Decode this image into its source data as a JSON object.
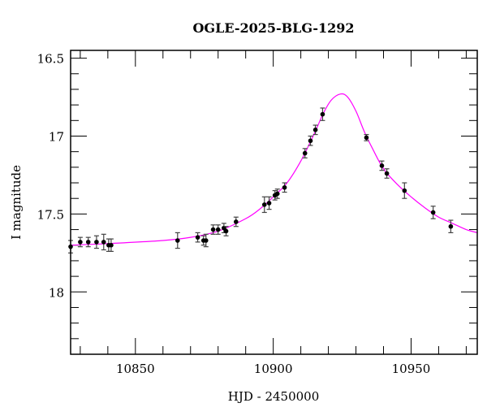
{
  "chart_data": {
    "type": "scatter",
    "title": "OGLE-2025-BLG-1292",
    "xlabel": "HJD - 2450000",
    "ylabel": "I magnitude",
    "xlim": [
      10826.5,
      10974
    ],
    "ylim": [
      16.45,
      18.4
    ],
    "y_inverted": true,
    "x_ticks": [
      10850,
      10900,
      10950
    ],
    "x_tick_labels": [
      "10850",
      "10900",
      "10950"
    ],
    "x_minor_step": 10,
    "y_ticks": [
      16.5,
      17,
      17.5,
      18
    ],
    "y_tick_labels": [
      "16.5",
      "17",
      "17.5",
      "18"
    ],
    "y_minor_step": 0.1,
    "grid": false,
    "colors": {
      "data": "#000000",
      "model": "#ff00ff",
      "errorbar": "#444444"
    },
    "series": [
      {
        "name": "data",
        "x": [
          10826.5,
          10830.0,
          10832.9,
          10835.9,
          10838.5,
          10840.3,
          10841.2,
          10865.3,
          10872.6,
          10874.7,
          10875.6,
          10878.2,
          10880.0,
          10882.1,
          10882.9,
          10886.5,
          10896.8,
          10898.5,
          10900.6,
          10901.5,
          10904.1,
          10911.5,
          10913.5,
          10915.3,
          10917.9,
          10933.8,
          10939.4,
          10941.2,
          10947.6,
          10958.0,
          10964.4
        ],
        "y": [
          17.71,
          17.68,
          17.68,
          17.68,
          17.68,
          17.7,
          17.7,
          17.67,
          17.65,
          17.67,
          17.67,
          17.6,
          17.6,
          17.59,
          17.61,
          17.55,
          17.44,
          17.43,
          17.38,
          17.37,
          17.33,
          17.11,
          17.03,
          16.96,
          16.86,
          17.01,
          17.19,
          17.24,
          17.35,
          17.49,
          17.58
        ],
        "err": [
          0.04,
          0.03,
          0.03,
          0.04,
          0.05,
          0.04,
          0.04,
          0.05,
          0.03,
          0.03,
          0.04,
          0.03,
          0.03,
          0.03,
          0.03,
          0.03,
          0.05,
          0.04,
          0.03,
          0.03,
          0.03,
          0.03,
          0.03,
          0.03,
          0.04,
          0.02,
          0.03,
          0.03,
          0.05,
          0.04,
          0.04
        ]
      },
      {
        "name": "model",
        "x": [
          10826.5,
          10840,
          10860,
          10870,
          10880,
          10890,
          10895,
          10900,
          10905,
          10910,
          10915,
          10918,
          10921,
          10924.4,
          10927,
          10930,
          10933,
          10936,
          10940,
          10945,
          10950,
          10955,
          10960,
          10965,
          10970,
          10974
        ],
        "y": [
          17.7,
          17.69,
          17.67,
          17.65,
          17.61,
          17.53,
          17.47,
          17.39,
          17.3,
          17.16,
          16.98,
          16.86,
          16.77,
          16.73,
          16.75,
          16.84,
          16.97,
          17.08,
          17.21,
          17.31,
          17.39,
          17.46,
          17.52,
          17.56,
          17.6,
          17.62
        ]
      }
    ]
  }
}
